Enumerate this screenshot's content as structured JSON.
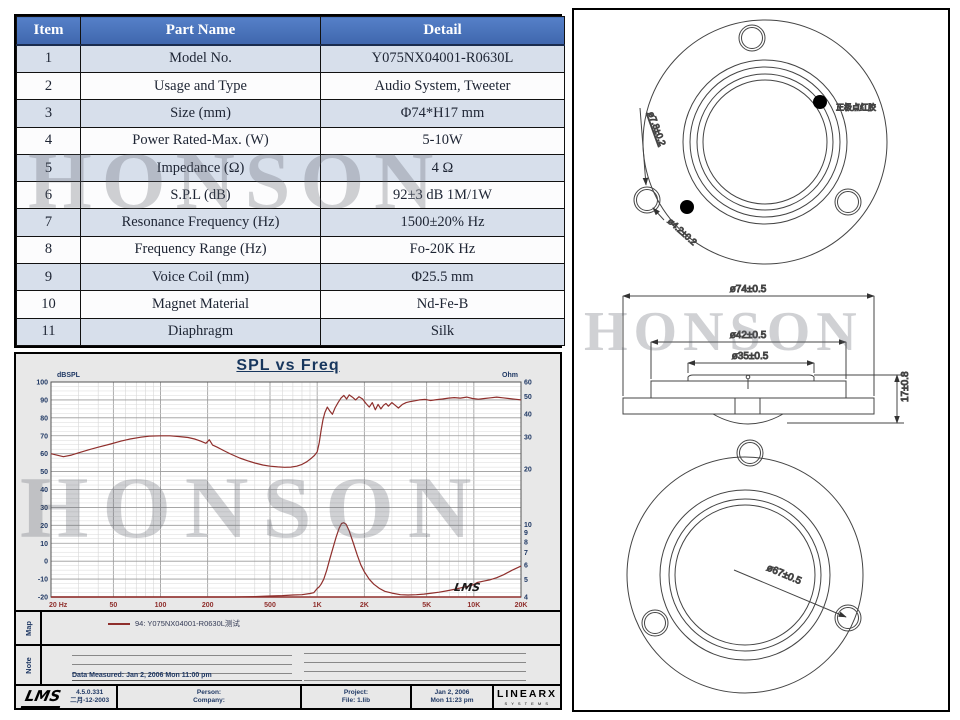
{
  "watermark": "HONSON",
  "spec_table": {
    "headers": [
      "Item",
      "Part Name",
      "Detail"
    ],
    "rows": [
      [
        "1",
        "Model No.",
        "Y075NX04001-R0630L"
      ],
      [
        "2",
        "Usage and Type",
        "Audio System, Tweeter"
      ],
      [
        "3",
        "Size (mm)",
        "Φ74*H17 mm"
      ],
      [
        "4",
        "Power Rated-Max. (W)",
        "5-10W"
      ],
      [
        "5",
        "Impedance (Ω)",
        "4 Ω"
      ],
      [
        "6",
        "S.P.L (dB)",
        "92±3 dB  1M/1W"
      ],
      [
        "7",
        "Resonance Frequency (Hz)",
        "1500±20% Hz"
      ],
      [
        "8",
        "Frequency Range (Hz)",
        "Fo-20K Hz"
      ],
      [
        "9",
        "Voice Coil (mm)",
        "Φ25.5 mm"
      ],
      [
        "10",
        "Magnet Material",
        "Nd-Fe-B"
      ],
      [
        "11",
        "Diaphragm",
        "Silk"
      ]
    ]
  },
  "chart": {
    "title": "SPL vs Freq",
    "map_label": "Map",
    "note_label": "Note",
    "legend": "94:  Y075NX04001-R0630L测试",
    "data_measured": "Data Measured: Jan  2, 2006  Mon 11:00 pm",
    "plot_watermark": "LMS",
    "footer": {
      "lms_logo": "LMS",
      "version": "4.5.0.331",
      "version_date": "二月-12-2003",
      "person": "Person:",
      "company": "Company:",
      "project": "Project:",
      "file": "File: 1.lib",
      "date": "Jan  2, 2006",
      "time": "Mon 11:23 pm",
      "brand": "LINEARX",
      "brand_sub": "S Y S T E M S"
    }
  },
  "chart_data": {
    "type": "line",
    "title": "SPL vs Freq",
    "x_scale": "log",
    "x_range": [
      20,
      20000
    ],
    "x_ticks": [
      "20 Hz",
      "50",
      "100",
      "200",
      "500",
      "1K",
      "2K",
      "5K",
      "10K",
      "20K"
    ],
    "x_tick_values": [
      20,
      50,
      100,
      200,
      500,
      1000,
      2000,
      5000,
      10000,
      20000
    ],
    "grid": true,
    "y_left": {
      "label": "dBSPL",
      "range": [
        -20,
        100
      ],
      "ticks": [
        100,
        90,
        80,
        70,
        60,
        50,
        40,
        30,
        20,
        10,
        0,
        -10,
        -20
      ]
    },
    "y_right": {
      "label": "Ohm",
      "scale": "log",
      "range": [
        4,
        60
      ],
      "ticks": [
        60,
        50,
        40,
        30,
        20,
        10,
        9,
        8,
        7,
        6,
        5,
        4
      ]
    },
    "series": [
      {
        "name": "SPL (dBSPL)",
        "axis": "left",
        "color": "#8f2f2c",
        "x": [
          20,
          24,
          27,
          30,
          35,
          40,
          48,
          56,
          64,
          75,
          85,
          100,
          115,
          130,
          150,
          165,
          180,
          195,
          205,
          215,
          230,
          250,
          280,
          320,
          360,
          400,
          450,
          500,
          560,
          620,
          680,
          740,
          800,
          860,
          920,
          960,
          1000,
          1030,
          1060,
          1090,
          1120,
          1160,
          1200,
          1250,
          1300,
          1360,
          1420,
          1480,
          1540,
          1600,
          1680,
          1760,
          1850,
          1950,
          2050,
          2150,
          2250,
          2350,
          2450,
          2550,
          2650,
          2750,
          2850,
          3000,
          3150,
          3300,
          3500,
          3700,
          3900,
          4200,
          4500,
          4900,
          5300,
          5800,
          6300,
          6900,
          7500,
          8200,
          9000,
          9800,
          10700,
          11700,
          12800,
          14000,
          15300,
          16700,
          18300,
          20000
        ],
        "y": [
          60,
          58.3,
          59.2,
          60.5,
          62.2,
          63.6,
          65.4,
          67,
          68.2,
          69.2,
          69.8,
          70,
          70,
          69.6,
          69,
          68.2,
          67,
          65.8,
          67.8,
          64.8,
          63.6,
          62,
          59.8,
          57.6,
          56,
          54.8,
          53.7,
          53,
          52.6,
          52.4,
          52.5,
          53,
          54,
          55.5,
          57.5,
          59,
          61,
          66,
          73,
          79,
          83,
          86,
          84,
          82,
          85.5,
          88.5,
          91,
          92.5,
          90.5,
          92.8,
          91.5,
          90,
          91.8,
          90.5,
          88,
          86,
          88.5,
          84.5,
          87.5,
          85,
          87,
          88,
          86.5,
          88.5,
          87,
          85.5,
          87.5,
          88.5,
          89,
          89.5,
          90,
          90.3,
          89.7,
          90.2,
          90.5,
          91,
          91.3,
          91,
          91.6,
          90.8,
          90.4,
          90.8,
          91.2,
          91.6,
          91.2,
          90.8,
          90.4,
          90
        ]
      },
      {
        "name": "Impedance (Ohm)",
        "axis": "right",
        "color": "#8f2f2c",
        "x": [
          20,
          50,
          100,
          200,
          300,
          400,
          500,
          600,
          700,
          800,
          900,
          950,
          1000,
          1030,
          1060,
          1100,
          1150,
          1200,
          1260,
          1320,
          1380,
          1430,
          1480,
          1530,
          1600,
          1700,
          1800,
          1900,
          2000,
          2150,
          2300,
          2500,
          2700,
          3000,
          3400,
          3800,
          4300,
          4800,
          5400,
          6000,
          6700,
          7500,
          8400,
          9400,
          10000,
          10500,
          11500,
          12600,
          14000,
          15500,
          17500,
          20000
        ],
        "y": [
          4.0,
          4.0,
          4.0,
          4.0,
          4.0,
          4.02,
          4.05,
          4.07,
          4.1,
          4.12,
          4.18,
          4.22,
          4.45,
          4.55,
          4.7,
          5.0,
          5.6,
          6.4,
          7.4,
          8.5,
          9.5,
          10.1,
          10.2,
          10.0,
          9.2,
          7.9,
          6.8,
          6.0,
          5.5,
          5.0,
          4.7,
          4.45,
          4.3,
          4.2,
          4.12,
          4.1,
          4.12,
          4.15,
          4.2,
          4.25,
          4.32,
          4.4,
          4.5,
          4.6,
          4.68,
          4.8,
          4.88,
          4.96,
          5.1,
          5.3,
          5.6,
          5.9
        ]
      }
    ]
  },
  "drawings": {
    "front_view": {
      "dim_mount_hole": "ø7.8±0.2",
      "dim_hole_small": "ø4.2±0.2",
      "terminal_note": "正极点红胶"
    },
    "section_view": {
      "dim_outer": "ø74±0.5",
      "dim_mid": "ø42±0.5",
      "dim_inner": "ø35±0.5",
      "dim_height": "17±0.8"
    },
    "rear_view": {
      "dim_back": "ø67±0.5"
    }
  }
}
